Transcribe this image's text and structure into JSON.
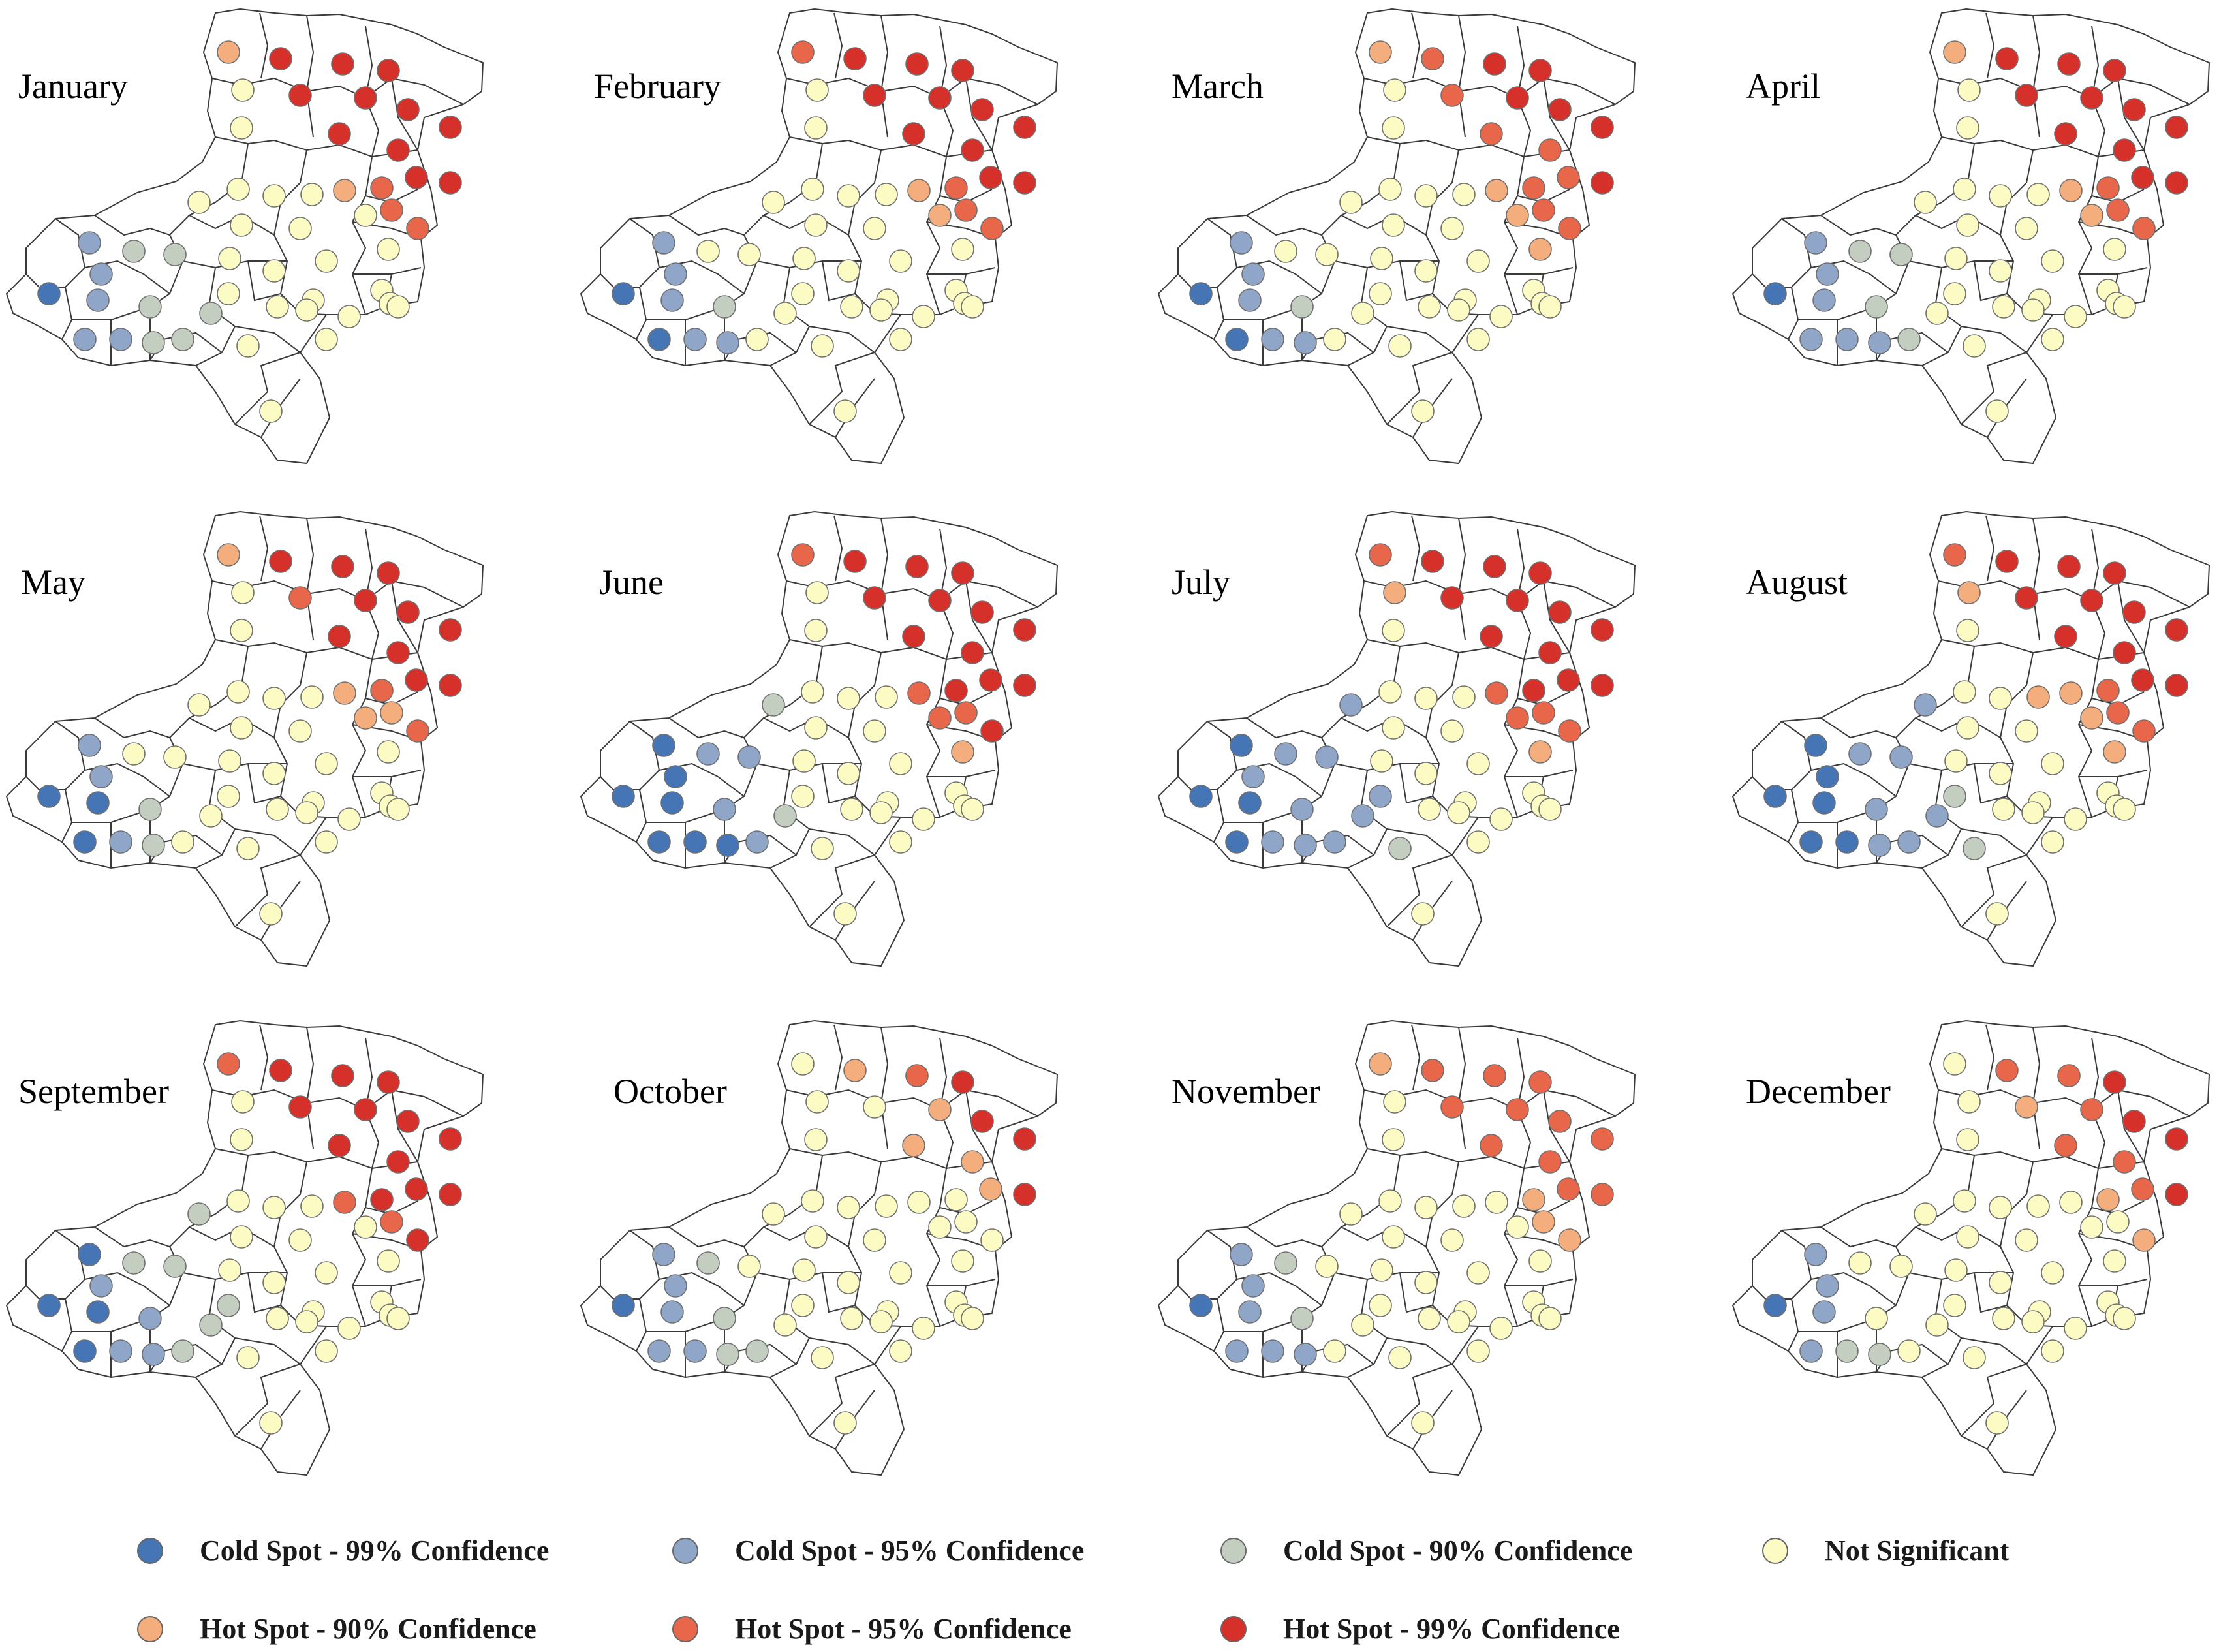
{
  "figure": {
    "months": [
      "January",
      "February",
      "March",
      "April",
      "May",
      "June",
      "July",
      "August",
      "September",
      "October",
      "November",
      "December"
    ]
  },
  "categories": [
    {
      "key": "cold99",
      "label": "Cold Spot - 99% Confidence",
      "color": "#4575b4"
    },
    {
      "key": "cold95",
      "label": "Cold Spot - 95% Confidence",
      "color": "#8fa6c9"
    },
    {
      "key": "cold90",
      "label": "Cold Spot - 90% Confidence",
      "color": "#c3cdc0"
    },
    {
      "key": "ns",
      "label": "Not Significant",
      "color": "#fdfbc4"
    },
    {
      "key": "hot90",
      "label": "Hot Spot - 90% Confidence",
      "color": "#f4ae7e"
    },
    {
      "key": "hot95",
      "label": "Hot Spot - 95% Confidence",
      "color": "#e8664a"
    },
    {
      "key": "hot99",
      "label": "Hot Spot - 99% Confidence",
      "color": "#d6302a"
    }
  ],
  "spot_counts_by_month": {
    "January": {
      "cold99": 1,
      "cold95": 5,
      "cold90": 6,
      "ns": 34,
      "hot90": 2,
      "hot95": 3,
      "hot99": 11
    },
    "February": {
      "cold99": 2,
      "cold95": 5,
      "cold90": 1,
      "ns": 36,
      "hot90": 2,
      "hot95": 4,
      "hot99": 11
    },
    "March": {
      "cold99": 2,
      "cold95": 5,
      "cold90": 1,
      "ns": 34,
      "hot90": 4,
      "hot95": 8,
      "hot99": 6
    },
    "April": {
      "cold99": 1,
      "cold95": 6,
      "cold90": 4,
      "ns": 38,
      "hot90": 3,
      "hot95": 3,
      "hot99": 11
    },
    "May": {
      "cold99": 3,
      "cold95": 3,
      "cold90": 2,
      "ns": 40,
      "hot90": 4,
      "hot95": 3,
      "hot99": 10
    },
    "June": {
      "cold99": 7,
      "cold95": 4,
      "cold90": 2,
      "ns": 36,
      "hot90": 1,
      "hot95": 4,
      "hot99": 13
    },
    "July": {
      "cold99": 4,
      "cold95": 10,
      "cold90": 1,
      "ns": 32,
      "hot90": 2,
      "hot95": 5,
      "hot99": 12
    },
    "August": {
      "cold99": 6,
      "cold95": 7,
      "cold90": 2,
      "ns": 33,
      "hot90": 5,
      "hot95": 4,
      "hot99": 11
    },
    "September": {
      "cold99": 4,
      "cold95": 4,
      "cold90": 6,
      "ns": 34,
      "hot90": 0,
      "hot95": 3,
      "hot99": 13
    },
    "October": {
      "cold99": 1,
      "cold95": 5,
      "cold90": 4,
      "ns": 40,
      "hot90": 5,
      "hot95": 1,
      "hot99": 4
    },
    "November": {
      "cold99": 1,
      "cold95": 6,
      "cold90": 2,
      "ns": 34,
      "hot90": 4,
      "hot95": 11,
      "hot99": 0
    },
    "December": {
      "cold99": 1,
      "cold95": 4,
      "cold90": 2,
      "ns": 38,
      "hot90": 3,
      "hot95": 6,
      "hot99": 4
    }
  }
}
